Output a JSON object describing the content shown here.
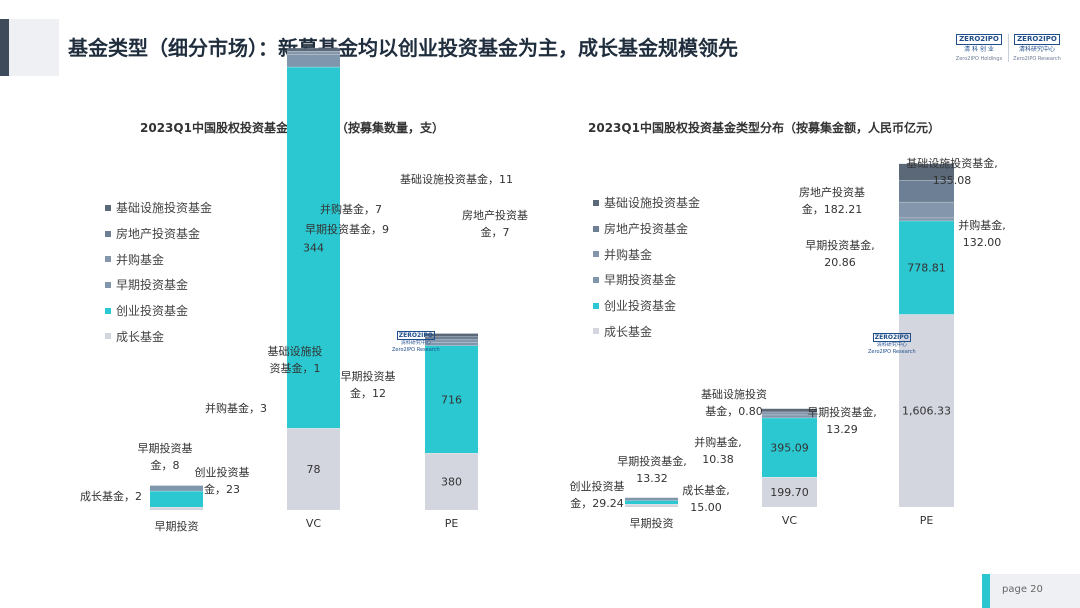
{
  "header": {
    "title": "基金类型（细分市场）：新募基金均以创业投资基金为主，成长基金规模领先",
    "logos": [
      {
        "brand": "ZERO2IPO",
        "cn": "清 科 创 业",
        "en": "Zero2IPO Holdings"
      },
      {
        "brand": "ZERO2IPO",
        "cn": "清科研究中心",
        "en": "Zero2IPO Research"
      }
    ]
  },
  "watermark": {
    "brand": "ZERO2IPO",
    "cn": "清科研究中心",
    "en": "Zero2IPO Research"
  },
  "colors": {
    "infra": "#5a6878",
    "realestate": "#6d7f95",
    "mna": "#8496ab",
    "early": "#7f96ad",
    "venture": "#2bc8d1",
    "growth": "#d3d6df",
    "accent": "#2cc6d1",
    "header_bar": "#3d4b5b"
  },
  "legend": [
    "基础设施投资基金",
    "房地产投资基金",
    "并购基金",
    "早期投资基金",
    "创业投资基金",
    "成长基金"
  ],
  "footer": {
    "page_label": "page 20"
  },
  "chart_data": [
    {
      "type": "bar",
      "stacked": true,
      "title": "2023Q1中国股权投资基金类型分布（按募集数量，支）",
      "categories": [
        "早期投资",
        "VC",
        "PE"
      ],
      "series": [
        {
          "name": "成长基金",
          "values": [
            2,
            78,
            380
          ]
        },
        {
          "name": "创业投资基金",
          "values": [
            23,
            344,
            716
          ]
        },
        {
          "name": "早期投资基金",
          "values": [
            8,
            12,
            9
          ]
        },
        {
          "name": "并购基金",
          "values": [
            0,
            3,
            7
          ]
        },
        {
          "name": "房地产投资基金",
          "values": [
            0,
            0,
            7
          ]
        },
        {
          "name": "基础设施投资基金",
          "values": [
            0,
            1,
            11
          ]
        }
      ],
      "annotations": {
        "early_growth": "成长基金，2",
        "early_early": "早期投资基\n金，8",
        "early_venture": "创业投资基\n金，23",
        "vc_infra": "基础设施投\n资基金，1",
        "vc_mna": "并购基金，3",
        "vc_early": "早期投资基\n金，12",
        "pe_infra": "基础设施投资基金，11",
        "pe_mna": "并购基金，7",
        "pe_early": "早期投资基金，9",
        "pe_realestate": "房地产投资基\n金，7"
      },
      "inner_labels": {
        "vc_venture": "344",
        "vc_growth": "78",
        "pe_venture": "716",
        "pe_growth": "380"
      },
      "legend": "left"
    },
    {
      "type": "bar",
      "stacked": true,
      "title": "2023Q1中国股权投资基金类型分布（按募集金额，人民币亿元）",
      "categories": [
        "早期投资",
        "VC",
        "PE"
      ],
      "series": [
        {
          "name": "成长基金",
          "values": [
            15.0,
            199.7,
            1606.33
          ]
        },
        {
          "name": "创业投资基金",
          "values": [
            29.24,
            395.09,
            778.81
          ]
        },
        {
          "name": "早期投资基金",
          "values": [
            13.32,
            13.29,
            20.86
          ]
        },
        {
          "name": "并购基金",
          "values": [
            0,
            10.38,
            132.0
          ]
        },
        {
          "name": "房地产投资基金",
          "values": [
            0,
            0,
            182.21
          ]
        },
        {
          "name": "基础设施投资基金",
          "values": [
            0,
            0.8,
            135.08
          ]
        }
      ],
      "annotations": {
        "early_venture": "创业投资基\n金，29.24",
        "early_early": "早期投资基金,\n13.32",
        "early_growth": "成长基金,\n15.00",
        "vc_infra": "基础设施投资\n基金，0.80",
        "vc_mna": "并购基金,\n10.38",
        "vc_early": "早期投资基金,\n13.29",
        "pe_infra": "基础设施投资基金,\n135.08",
        "pe_realestate": "房地产投资基\n金，182.21",
        "pe_mna": "并购基金,\n132.00",
        "pe_early": "早期投资基金,\n20.86"
      },
      "inner_labels": {
        "vc_venture": "395.09",
        "vc_growth": "199.70",
        "pe_venture": "778.81",
        "pe_growth": "1,606.33"
      },
      "legend": "left"
    }
  ]
}
